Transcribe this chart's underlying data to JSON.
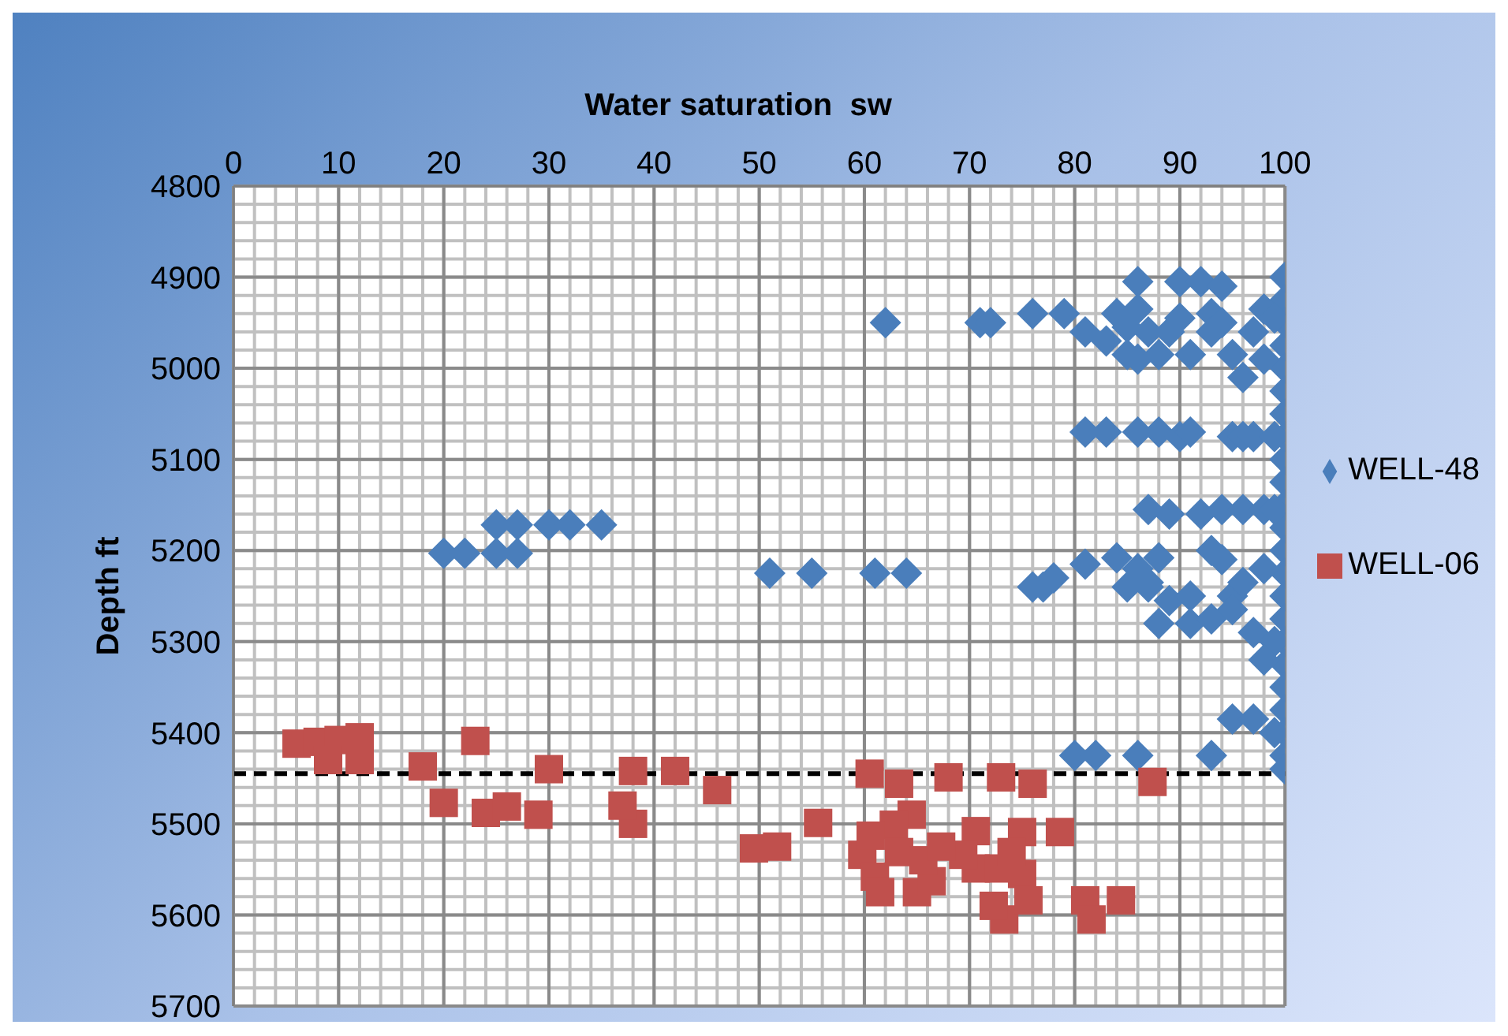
{
  "chart_data": {
    "type": "scatter",
    "xlabel": "Water saturation  sw",
    "ylabel": "Depth ft",
    "xlim": [
      0,
      100
    ],
    "xticks": [
      0,
      10,
      20,
      30,
      40,
      50,
      60,
      70,
      80,
      90,
      100
    ],
    "ylim": [
      5700,
      4800
    ],
    "yticks": [
      4800,
      4900,
      5000,
      5100,
      5200,
      5300,
      5400,
      5500,
      5600,
      5700
    ],
    "grid": true,
    "legend": "right",
    "ref_lines": [
      {
        "axis": "y",
        "value": 5445,
        "color": "#000000",
        "line_style": "dashed"
      }
    ],
    "series": [
      {
        "name": "WELL-48",
        "color": "#4a7ebb",
        "marker": "diamond",
        "x": [
          100,
          100,
          100,
          100,
          100,
          100,
          100,
          100,
          100,
          100,
          100,
          100,
          100,
          100,
          100,
          100,
          100,
          100,
          100,
          100,
          100,
          100,
          100,
          86,
          90,
          92,
          94,
          62,
          71,
          72,
          76,
          79,
          81,
          83,
          84,
          85,
          86,
          87,
          86,
          88,
          89,
          90,
          91,
          93,
          93,
          94,
          95,
          96,
          97,
          98,
          98,
          99,
          85,
          81,
          83,
          86,
          88,
          90,
          91,
          95,
          96,
          97,
          99,
          87,
          89,
          92,
          94,
          96,
          98,
          99,
          25,
          27,
          30,
          32,
          35,
          20,
          22,
          25,
          27,
          51,
          55,
          61,
          64,
          81,
          84,
          86,
          88,
          85,
          87,
          89,
          91,
          93,
          94,
          95,
          96,
          98,
          76,
          78,
          77,
          88,
          91,
          93,
          95,
          97,
          99,
          98,
          87,
          95,
          97,
          99,
          80,
          82,
          86,
          93
        ],
        "values": [
          4900,
          4925,
          4950,
          4975,
          5000,
          5025,
          5050,
          5075,
          5100,
          5125,
          5150,
          5175,
          5200,
          5225,
          5250,
          5275,
          5300,
          5325,
          5350,
          5375,
          5400,
          5425,
          5440,
          4905,
          4905,
          4905,
          4910,
          4950,
          4950,
          4950,
          4940,
          4940,
          4960,
          4970,
          4940,
          4955,
          4935,
          4960,
          4990,
          4985,
          4960,
          4945,
          4985,
          4940,
          4960,
          4950,
          4985,
          5010,
          4960,
          4990,
          4935,
          4945,
          4985,
          5070,
          5070,
          5070,
          5070,
          5075,
          5070,
          5075,
          5075,
          5075,
          5075,
          5155,
          5160,
          5160,
          5155,
          5155,
          5155,
          5155,
          5172,
          5172,
          5172,
          5172,
          5172,
          5203,
          5203,
          5203,
          5203,
          5225,
          5225,
          5225,
          5225,
          5215,
          5208,
          5220,
          5208,
          5240,
          5240,
          5255,
          5250,
          5200,
          5210,
          5250,
          5235,
          5220,
          5240,
          5230,
          5240,
          5280,
          5280,
          5275,
          5265,
          5290,
          5300,
          5320,
          5235,
          5385,
          5385,
          5400,
          5425,
          5425,
          5425,
          5425
        ]
      },
      {
        "name": "WELL-06",
        "color": "#c0504d",
        "marker": "square",
        "x": [
          6,
          8,
          10,
          12,
          12,
          9,
          23,
          18,
          30,
          38,
          42,
          20,
          24,
          26,
          29,
          38,
          37,
          46,
          49.5,
          51.7,
          55.6,
          60.5,
          63.3,
          68,
          73,
          76,
          87.4,
          64.5,
          62.8,
          59.8,
          61,
          61.5,
          65,
          66.4,
          70.6,
          70.6,
          69.4,
          72.8,
          75,
          75,
          78.6,
          73.3,
          81,
          84.4,
          81.6,
          63.3,
          65.6,
          74,
          75.6,
          72.3,
          67.3,
          60.6
        ],
        "values": [
          5412,
          5410,
          5408,
          5405,
          5430,
          5430,
          5409,
          5437,
          5440,
          5442,
          5442,
          5477,
          5488,
          5481,
          5490,
          5500,
          5480,
          5463,
          5527,
          5525,
          5499,
          5445,
          5456,
          5449,
          5449,
          5456,
          5454,
          5490,
          5501,
          5534,
          5558,
          5575,
          5575,
          5563,
          5508,
          5549,
          5534,
          5549,
          5555,
          5509,
          5509,
          5605,
          5584,
          5584,
          5605,
          5531,
          5540,
          5531,
          5584,
          5590,
          5525,
          5513
        ]
      }
    ]
  }
}
